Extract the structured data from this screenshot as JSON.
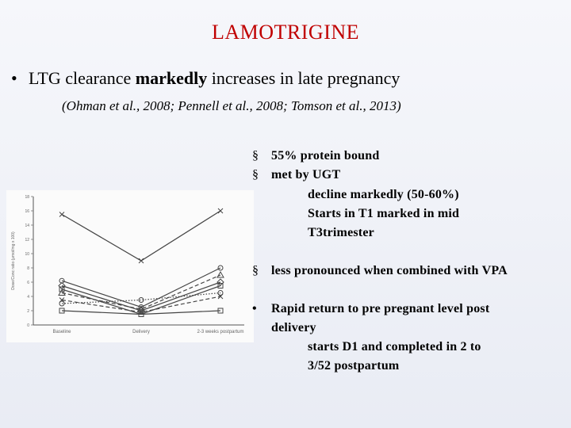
{
  "slide": {
    "title": "LAMOTRIGINE",
    "main_bullet": {
      "marker": "•",
      "text_before": "LTG clearance ",
      "emphasis": "markedly",
      "text_after": " increases  in late pregnancy"
    },
    "references": "(Ohman et al., 2008; Pennell et al., 2008; Tomson et al., 2013)",
    "right_points": [
      {
        "marker": "§",
        "text": "55% protein bound"
      },
      {
        "marker": "§",
        "text": "met by UGT"
      },
      {
        "marker": "",
        "text": "decline markedly (50-60%)"
      },
      {
        "marker": "",
        "text": "Starts in T1 marked in mid"
      },
      {
        "marker": "",
        "text": "T3trimester"
      },
      {
        "marker": "§",
        "text": "less pronounced when combined with VPA"
      },
      {
        "marker": "•",
        "text": "Rapid return to pre pregnant level post"
      },
      {
        "marker": "",
        "text": "delivery"
      },
      {
        "marker": "",
        "text": "starts D1 and completed in  2 to"
      },
      {
        "marker": "",
        "text": "3/52 postpartum"
      }
    ]
  },
  "chart_data": {
    "type": "line",
    "categories": [
      "Baseline",
      "Delivery",
      "2-3 weeks postpartum"
    ],
    "ylabel": "Dose/Conc ratio (μmol/mg x 100)",
    "ylim": [
      0,
      18
    ],
    "yticks": [
      0,
      2,
      4,
      6,
      8,
      10,
      12,
      14,
      16,
      18
    ],
    "series": [
      {
        "values": [
          15.5,
          9.0,
          16.0
        ],
        "marker": "x",
        "style": "solid"
      },
      {
        "values": [
          6.2,
          2.5,
          8.0
        ],
        "marker": "o",
        "style": "solid"
      },
      {
        "values": [
          5.5,
          2.0,
          6.0
        ],
        "marker": "diamond",
        "style": "solid"
      },
      {
        "values": [
          5.0,
          1.5,
          5.5
        ],
        "marker": "square",
        "style": "solid"
      },
      {
        "values": [
          4.5,
          2.2,
          7.0
        ],
        "marker": "triangle",
        "style": "dashed"
      },
      {
        "values": [
          3.5,
          1.8,
          4.0
        ],
        "marker": "x",
        "style": "dashed"
      },
      {
        "values": [
          3.0,
          3.5,
          4.5
        ],
        "marker": "o",
        "style": "dotted"
      },
      {
        "values": [
          2.0,
          1.5,
          2.0
        ],
        "marker": "square",
        "style": "solid"
      }
    ]
  }
}
